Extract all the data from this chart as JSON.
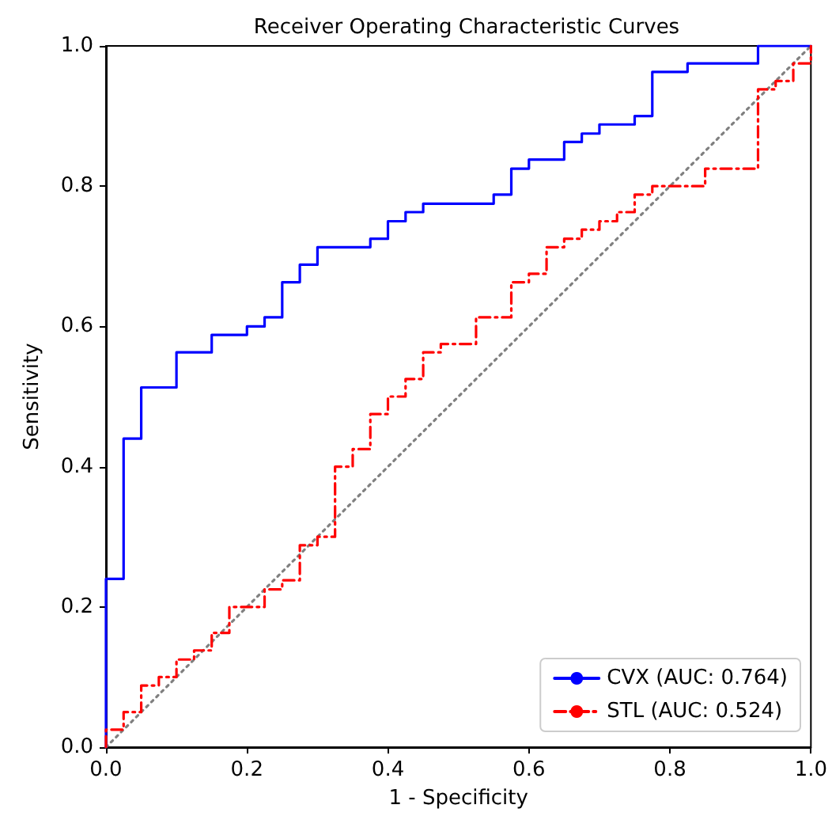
{
  "chart_data": {
    "type": "step",
    "title": "Receiver Operating Characteristic Curves",
    "xlabel": "1 - Specificity",
    "ylabel": "Sensitivity",
    "xlim": [
      0,
      1
    ],
    "ylim": [
      0,
      1
    ],
    "xticks": [
      {
        "value": 0,
        "label": "0.0"
      },
      {
        "value": 0.2,
        "label": "0.2"
      },
      {
        "value": 0.4,
        "label": "0.4"
      },
      {
        "value": 0.6,
        "label": "0.6"
      },
      {
        "value": 0.8,
        "label": "0.8"
      },
      {
        "value": 1,
        "label": "1.0"
      }
    ],
    "yticks": [
      {
        "value": 0,
        "label": "0.0"
      },
      {
        "value": 0.2,
        "label": "0.2"
      },
      {
        "value": 0.4,
        "label": "0.4"
      },
      {
        "value": 0.6,
        "label": "0.6"
      },
      {
        "value": 0.8,
        "label": "0.8"
      },
      {
        "value": 1,
        "label": "1.0"
      }
    ],
    "grid": false,
    "legend": "bottom right",
    "marker": "none",
    "series": [
      {
        "name": "CVX (AUC: 0.764)",
        "color": "#0000ff",
        "line_style": "solid",
        "x": [
          0,
          0,
          0.025,
          0.05,
          0.1,
          0.15,
          0.2,
          0.225,
          0.25,
          0.275,
          0.3,
          0.375,
          0.4,
          0.425,
          0.45,
          0.55,
          0.575,
          0.6,
          0.65,
          0.675,
          0.7,
          0.75,
          0.775,
          0.825,
          0.925,
          1
        ],
        "values": [
          0,
          0.24,
          0.44,
          0.513,
          0.563,
          0.588,
          0.6,
          0.613,
          0.663,
          0.688,
          0.713,
          0.725,
          0.75,
          0.763,
          0.775,
          0.788,
          0.825,
          0.838,
          0.863,
          0.875,
          0.888,
          0.9,
          0.963,
          0.975,
          1,
          1
        ]
      },
      {
        "name": "STL (AUC: 0.524)",
        "color": "#ff0000",
        "line_style": "dashed",
        "x": [
          0,
          0,
          0.025,
          0.05,
          0.075,
          0.1,
          0.125,
          0.15,
          0.175,
          0.225,
          0.25,
          0.275,
          0.3,
          0.325,
          0.35,
          0.375,
          0.4,
          0.425,
          0.45,
          0.475,
          0.525,
          0.575,
          0.6,
          0.625,
          0.65,
          0.675,
          0.7,
          0.725,
          0.75,
          0.775,
          0.85,
          0.925,
          0.95,
          0.975,
          1
        ],
        "values": [
          0,
          0.025,
          0.05,
          0.088,
          0.1,
          0.125,
          0.138,
          0.163,
          0.2,
          0.225,
          0.238,
          0.288,
          0.3,
          0.4,
          0.425,
          0.475,
          0.5,
          0.525,
          0.563,
          0.575,
          0.613,
          0.663,
          0.675,
          0.713,
          0.725,
          0.738,
          0.75,
          0.763,
          0.788,
          0.8,
          0.825,
          0.938,
          0.95,
          0.975,
          1
        ]
      },
      {
        "type": "line",
        "color": "#808080",
        "line_style": "dotted",
        "x": [
          0,
          1
        ],
        "values": [
          0,
          1
        ]
      }
    ]
  }
}
